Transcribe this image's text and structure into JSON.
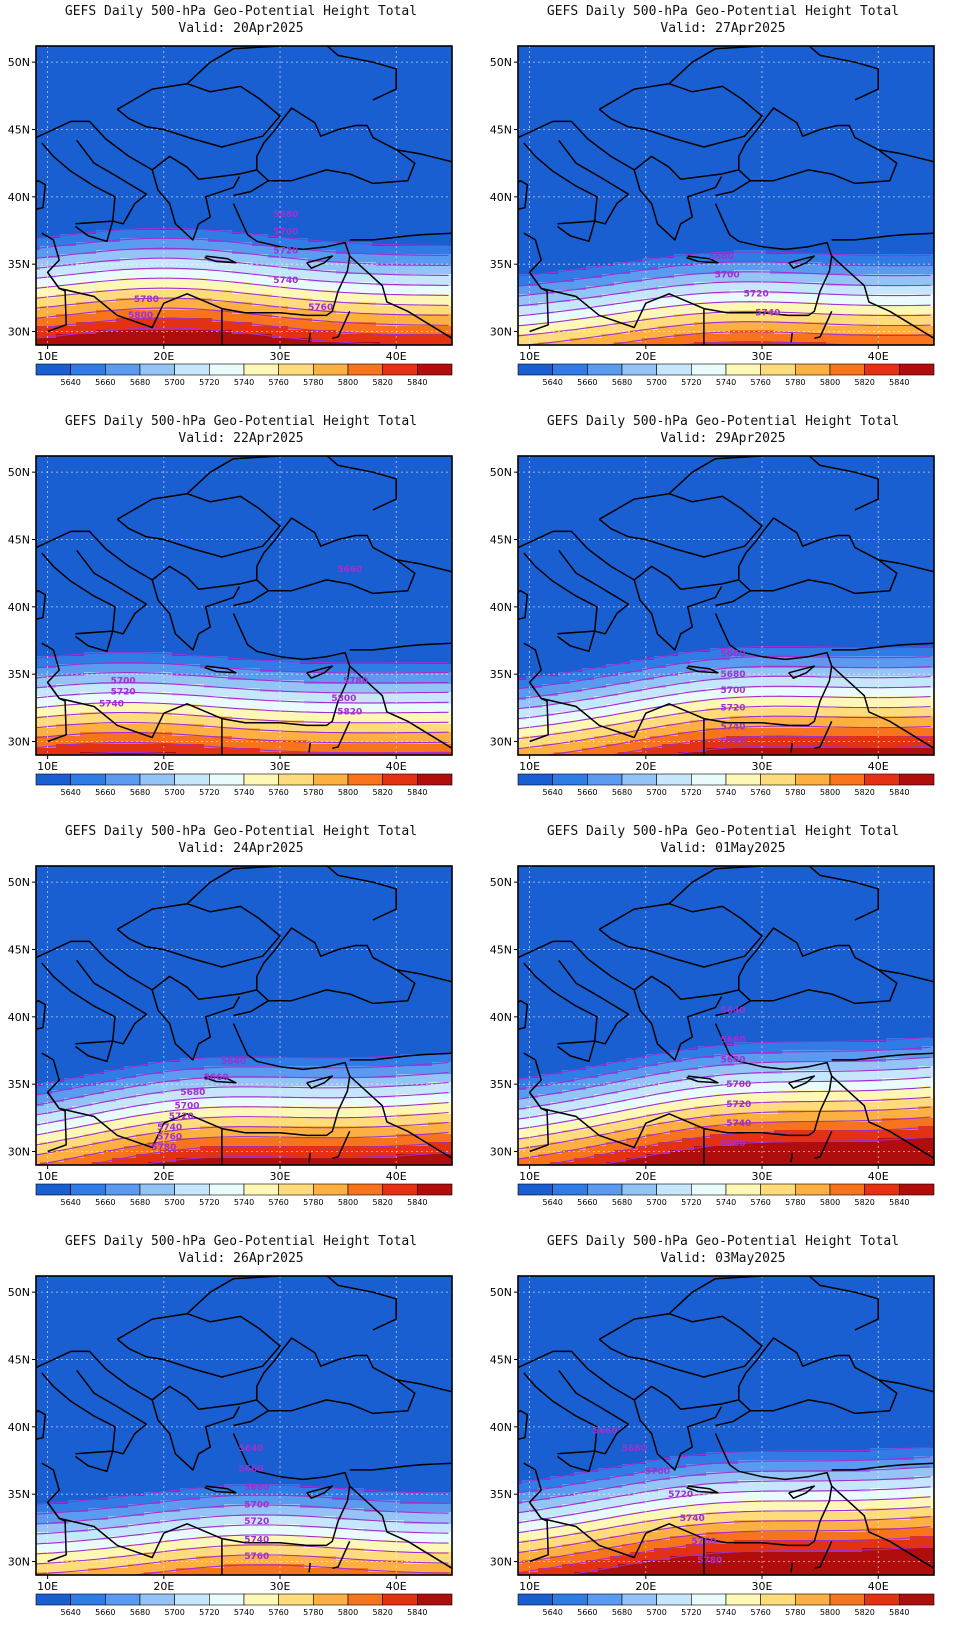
{
  "lon_labels": [
    "10E",
    "20E",
    "30E",
    "40E"
  ],
  "lat_labels": [
    "50N",
    "45N",
    "40N",
    "35N",
    "30N"
  ],
  "colorbar": {
    "labels": [
      "5640",
      "5660",
      "5680",
      "5700",
      "5720",
      "5740",
      "5760",
      "5780",
      "5800",
      "5820",
      "5840"
    ],
    "colors": [
      "#1a5fd1",
      "#2f7ce6",
      "#5a9bf0",
      "#94c3f6",
      "#c5e6fb",
      "#e9fbfb",
      "#fef8b6",
      "#fedc7c",
      "#fdb042",
      "#f8741c",
      "#e43111",
      "#b00d0d"
    ]
  },
  "contour_color": "#a030d0",
  "panels": [
    {
      "title": "GEFS Daily 500-hPa Geo-Potential Height Total",
      "valid": "Valid: 20Apr2025",
      "base": 5650,
      "amp": 35,
      "tilt": 0.0,
      "lat_center": 36,
      "lon_center": 20,
      "labels": [
        {
          "text": "5680",
          "lon": 30.5,
          "lat": 38.5
        },
        {
          "text": "5700",
          "lon": 30.5,
          "lat": 37.2
        },
        {
          "text": "5720",
          "lon": 30.5,
          "lat": 35.8
        },
        {
          "text": "5740",
          "lon": 30.5,
          "lat": 33.6
        },
        {
          "text": "5760",
          "lon": 33.5,
          "lat": 31.6
        },
        {
          "text": "5780",
          "lon": 18.5,
          "lat": 32.2
        },
        {
          "text": "5800",
          "lon": 18,
          "lat": 31.0
        }
      ]
    },
    {
      "title": "GEFS Daily 500-hPa Geo-Potential Height Total",
      "valid": "Valid: 27Apr2025",
      "base": 5660,
      "amp": 30,
      "tilt": 0.2,
      "lat_center": 34,
      "lon_center": 26,
      "labels": [
        {
          "text": "5680",
          "lon": 26.5,
          "lat": 35.4
        },
        {
          "text": "5700",
          "lon": 27,
          "lat": 34.0
        },
        {
          "text": "5720",
          "lon": 29.5,
          "lat": 32.6
        },
        {
          "text": "5740",
          "lon": 30.5,
          "lat": 31.2
        }
      ]
    },
    {
      "title": "GEFS Daily 500-hPa Geo-Potential Height Total",
      "valid": "Valid: 22Apr2025",
      "base": 5655,
      "amp": 28,
      "tilt": 0.05,
      "lat_center": 35,
      "lon_center": 16,
      "labels": [
        {
          "text": "5660",
          "lon": 36,
          "lat": 42.6
        },
        {
          "text": "5700",
          "lon": 16.5,
          "lat": 34.3
        },
        {
          "text": "5720",
          "lon": 16.5,
          "lat": 33.5
        },
        {
          "text": "5740",
          "lon": 15.5,
          "lat": 32.6
        },
        {
          "text": "5780",
          "lon": 36.5,
          "lat": 34.3
        },
        {
          "text": "5800",
          "lon": 35.5,
          "lat": 33.0
        },
        {
          "text": "5820",
          "lon": 36,
          "lat": 32.0
        }
      ]
    },
    {
      "title": "GEFS Daily 500-hPa Geo-Potential Height Total",
      "valid": "Valid: 29Apr2025",
      "base": 5660,
      "amp": 32,
      "tilt": 0.3,
      "lat_center": 35,
      "lon_center": 27,
      "labels": [
        {
          "text": "5660",
          "lon": 27.5,
          "lat": 36.3
        },
        {
          "text": "5680",
          "lon": 27.5,
          "lat": 34.8
        },
        {
          "text": "5700",
          "lon": 27.5,
          "lat": 33.6
        },
        {
          "text": "5720",
          "lon": 27.5,
          "lat": 32.3
        },
        {
          "text": "5740",
          "lon": 27.5,
          "lat": 30.9
        },
        {
          "text": "5760",
          "lon": 27.5,
          "lat": 29.8
        }
      ]
    },
    {
      "title": "GEFS Daily 500-hPa Geo-Potential Height Total",
      "valid": "Valid: 24Apr2025",
      "base": 5655,
      "amp": 35,
      "tilt": 0.35,
      "lat_center": 35,
      "lon_center": 22,
      "labels": [
        {
          "text": "5640",
          "lon": 26,
          "lat": 36.5
        },
        {
          "text": "5660",
          "lon": 24.5,
          "lat": 35.3
        },
        {
          "text": "5680",
          "lon": 22.5,
          "lat": 34.2
        },
        {
          "text": "5700",
          "lon": 22,
          "lat": 33.2
        },
        {
          "text": "5720",
          "lon": 21.5,
          "lat": 32.4
        },
        {
          "text": "5740",
          "lon": 20.5,
          "lat": 31.6
        },
        {
          "text": "5760",
          "lon": 20.5,
          "lat": 30.9
        },
        {
          "text": "5780",
          "lon": 20,
          "lat": 30.1
        }
      ]
    },
    {
      "title": "GEFS Daily 500-hPa Geo-Potential Height Total",
      "valid": "Valid: 01May2025",
      "base": 5660,
      "amp": 30,
      "tilt": 0.4,
      "lat_center": 36,
      "lon_center": 26,
      "labels": [
        {
          "text": "5640",
          "lon": 27.5,
          "lat": 40.3
        },
        {
          "text": "5660",
          "lon": 27.5,
          "lat": 38.1
        },
        {
          "text": "5680",
          "lon": 27.5,
          "lat": 36.6
        },
        {
          "text": "5700",
          "lon": 28,
          "lat": 34.8
        },
        {
          "text": "5720",
          "lon": 28,
          "lat": 33.3
        },
        {
          "text": "5740",
          "lon": 28,
          "lat": 31.9
        },
        {
          "text": "5760",
          "lon": 27.5,
          "lat": 30.4
        }
      ]
    },
    {
      "title": "GEFS Daily 500-hPa Geo-Potential Height Total",
      "valid": "Valid: 26Apr2025",
      "base": 5655,
      "amp": 30,
      "tilt": 0.1,
      "lat_center": 34,
      "lon_center": 27,
      "labels": [
        {
          "text": "5640",
          "lon": 27.5,
          "lat": 38.2
        },
        {
          "text": "5660",
          "lon": 27.5,
          "lat": 36.7
        },
        {
          "text": "5680",
          "lon": 28,
          "lat": 35.3
        },
        {
          "text": "5700",
          "lon": 28,
          "lat": 34.0
        },
        {
          "text": "5720",
          "lon": 28,
          "lat": 32.8
        },
        {
          "text": "5740",
          "lon": 28,
          "lat": 31.4
        },
        {
          "text": "5760",
          "lon": 28,
          "lat": 30.2
        }
      ]
    },
    {
      "title": "GEFS Daily 500-hPa Geo-Potential Height Total",
      "valid": "Valid: 03May2025",
      "base": 5665,
      "amp": 28,
      "tilt": 0.35,
      "lat_center": 36,
      "lon_center": 25,
      "labels": [
        {
          "text": "5660",
          "lon": 16.5,
          "lat": 39.5
        },
        {
          "text": "5680",
          "lon": 19,
          "lat": 38.2
        },
        {
          "text": "5700",
          "lon": 21,
          "lat": 36.5
        },
        {
          "text": "5720",
          "lon": 23,
          "lat": 34.8
        },
        {
          "text": "5740",
          "lon": 24,
          "lat": 33.0
        },
        {
          "text": "5760",
          "lon": 25,
          "lat": 31.3
        },
        {
          "text": "5780",
          "lon": 25.5,
          "lat": 29.9
        }
      ]
    }
  ]
}
